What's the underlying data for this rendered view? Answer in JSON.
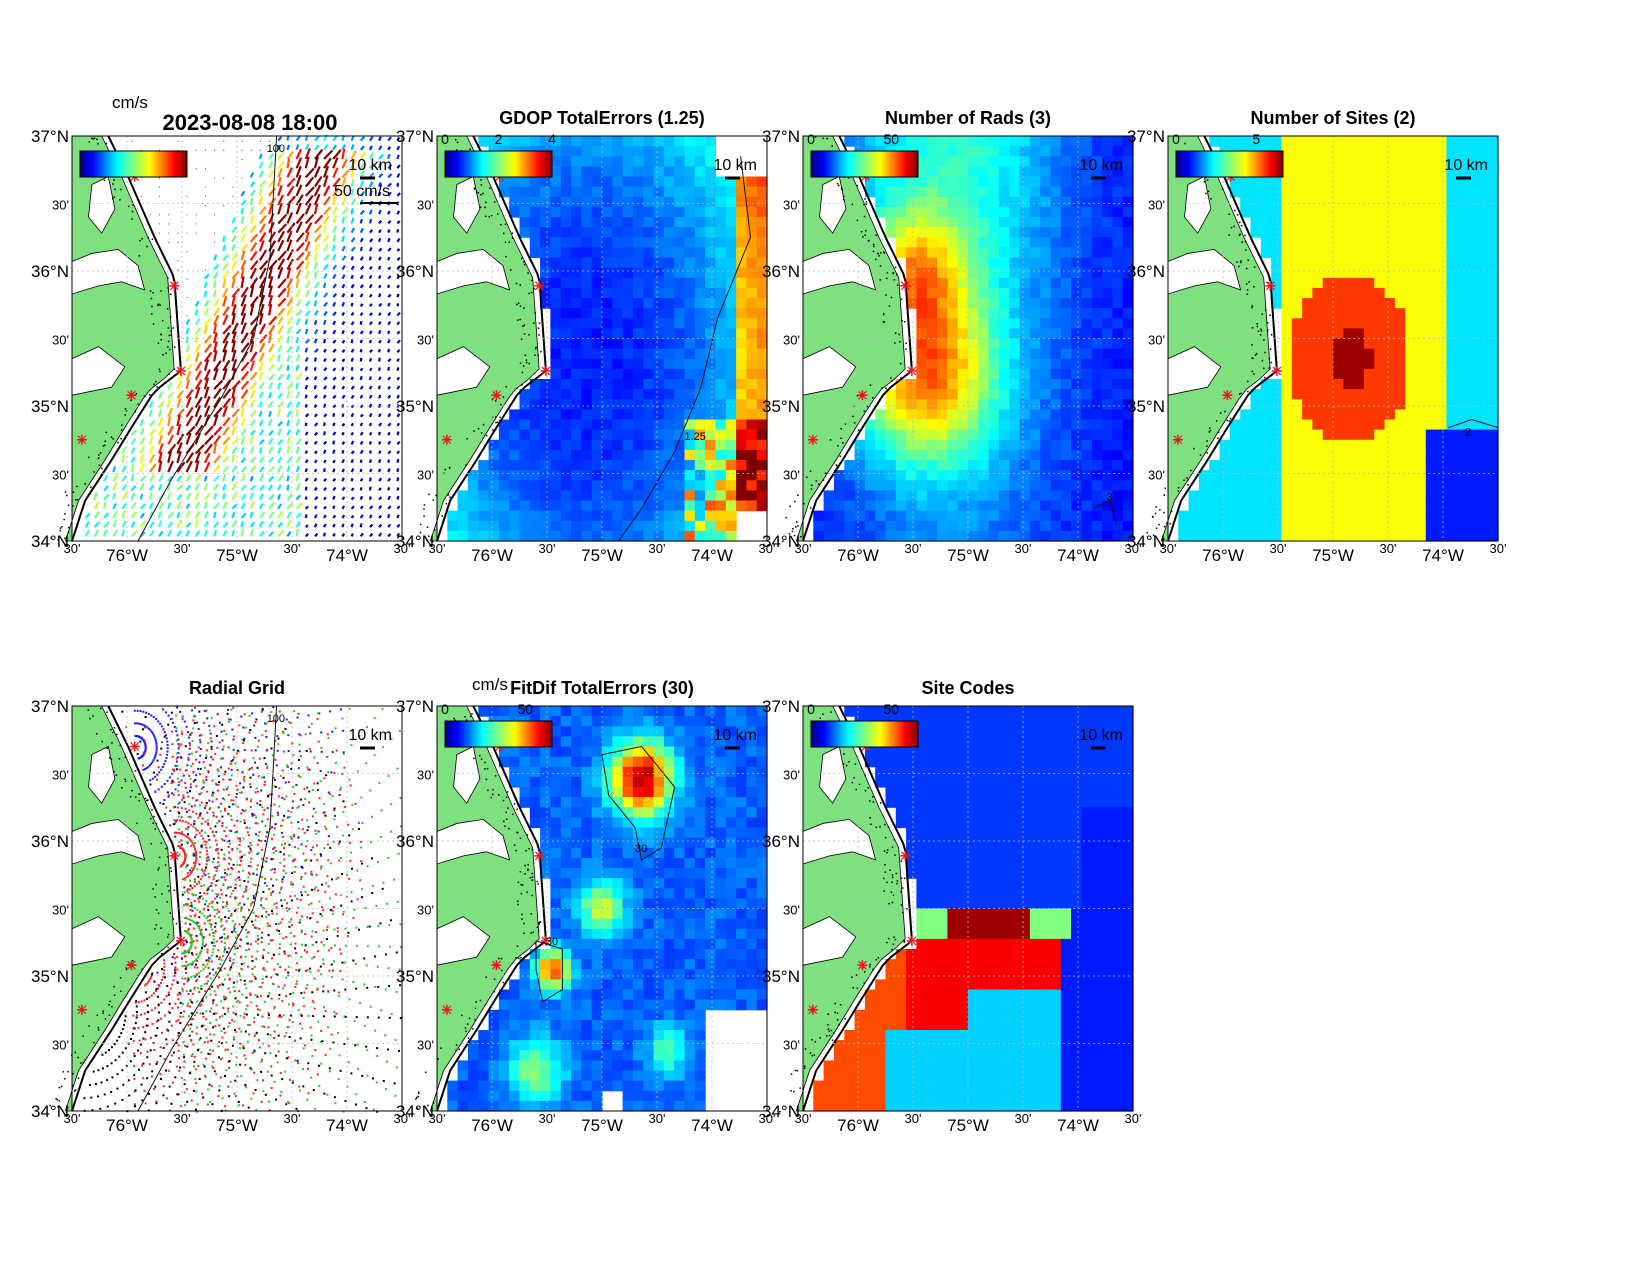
{
  "figure_title": "2023-08-08 18:00",
  "axis_labels": {
    "lat_degrees": [
      "37°N",
      "36°N",
      "35°N",
      "34°N"
    ],
    "lat_minutes": "30'",
    "lon_degrees": [
      "76°W",
      "75°W",
      "74°W"
    ],
    "lon_minutes": "30'"
  },
  "scale_label": "10 km",
  "units_label": "cm/s",
  "vector_scale_label": "50 cm/s",
  "colors": {
    "land": "#7fe07f",
    "ocean_blank": "#ffffff",
    "site_marker": "#e8141e",
    "contour": "#111111"
  },
  "panels": [
    {
      "id": "total-currents",
      "title": "",
      "colorbar": {
        "ticks": [],
        "palette": "jet"
      },
      "contour_label": "100",
      "field": "current-vectors"
    },
    {
      "id": "gdop-total-errors",
      "title": "GDOP TotalErrors (1.25)",
      "colorbar": {
        "ticks": [
          "0",
          "2",
          "4"
        ],
        "palette": "jet"
      },
      "contour_label": "1.25",
      "field": "gdop"
    },
    {
      "id": "number-of-rads",
      "title": "Number of Rads (3)",
      "colorbar": {
        "ticks": [
          "0",
          "50"
        ],
        "palette": "jet"
      },
      "contour_label": "3",
      "field": "rads"
    },
    {
      "id": "number-of-sites",
      "title": "Number of Sites (2)",
      "colorbar": {
        "ticks": [
          "0",
          "5"
        ],
        "palette": "jet"
      },
      "contour_label": "2",
      "field": "sites"
    },
    {
      "id": "radial-grid",
      "title": "Radial Grid",
      "colorbar": null,
      "contour_label": "100",
      "field": "radial-grid"
    },
    {
      "id": "fitdif-total-errors",
      "title": "FitDif TotalErrors (30)",
      "colorbar": {
        "ticks": [
          "0",
          "50"
        ],
        "palette": "jet"
      },
      "contour_label": "30",
      "field": "fitdif"
    },
    {
      "id": "site-codes",
      "title": "Site Codes",
      "colorbar": {
        "ticks": [
          "0",
          "50"
        ],
        "palette": "jet"
      },
      "contour_label": "",
      "field": "sitecodes"
    }
  ]
}
